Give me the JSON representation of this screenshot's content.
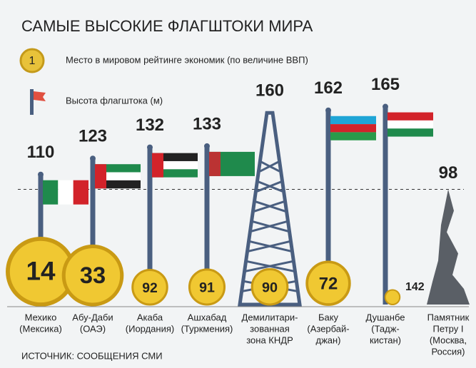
{
  "chart_data": {
    "type": "bar",
    "title": "САМЫЕ ВЫСОКИЕ ФЛАГШТОКИ МИРА",
    "legend": {
      "coin": "Место в мировом рейтинге экономик (по величине ВВП)",
      "coin_icon": "1",
      "pole": "Высота флагштока (м)"
    },
    "categories": [
      [
        "Мехико",
        "(Мексика)"
      ],
      [
        "Абу-Даби",
        "(ОАЭ)"
      ],
      [
        "Акаба",
        "(Иордания)"
      ],
      [
        "Ашхабад",
        "(Туркмения)"
      ],
      [
        "Демилитари-",
        "зованная",
        "зона КНДР"
      ],
      [
        "Баку",
        "(Азербай-",
        "джан)"
      ],
      [
        "Душанбе",
        "(Тадж-",
        "кистан)"
      ],
      [
        "Памятник",
        "Петру I",
        "(Москва,",
        "Россия)"
      ]
    ],
    "values": [
      110,
      123,
      132,
      133,
      160,
      162,
      165,
      98
    ],
    "gdp_rank": [
      14,
      33,
      92,
      91,
      90,
      72,
      142,
      null
    ],
    "reference_line": 98,
    "ylim": [
      0,
      250
    ],
    "color": "#4a5f80",
    "source": "ИСТОЧНИК: СООБЩЕНИЯ СМИ"
  }
}
